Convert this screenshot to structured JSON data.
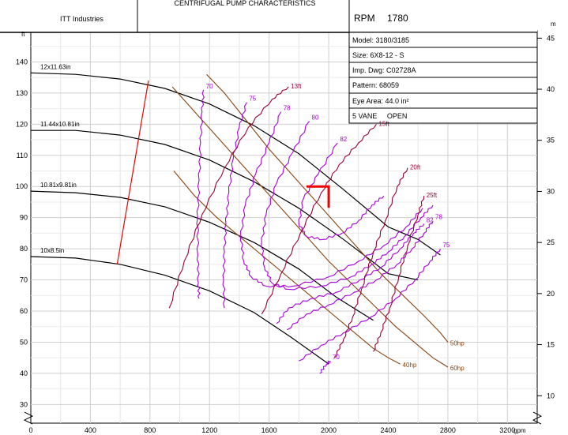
{
  "header": {
    "title": "CENTRIFUGAL PUMP CHARACTERISTICS",
    "company": "ITT Industries",
    "rpm_label": "RPM",
    "rpm_value": "1780"
  },
  "info": [
    "Model: 3180/3185",
    "Size: 6X8-12 - S",
    "Imp. Dwg: C02728A",
    "Pattern: 68059",
    "Eye Area: 44.0 in²",
    "5 VANE     OPEN"
  ],
  "chart_data": {
    "type": "line",
    "xlabel": "gpm",
    "ylabel": "ft",
    "y2label": "m",
    "xlim": [
      0,
      3400
    ],
    "ylim": [
      24,
      150
    ],
    "x_ticks": [
      0,
      400,
      800,
      1200,
      1600,
      2000,
      2400,
      2800,
      3200
    ],
    "y_ticks": [
      30,
      40,
      50,
      60,
      70,
      80,
      90,
      100,
      110,
      120,
      130,
      140
    ],
    "y2_ticks": [
      10,
      15,
      20,
      25,
      30,
      35,
      40,
      45
    ],
    "grid": true,
    "colors": {
      "head": "#000000",
      "efficiency": "#aa00dd",
      "npsh": "#990033",
      "power": "#884411",
      "limit": "#ee0000",
      "operating_point": "#ee0000"
    },
    "impeller_curves": [
      {
        "label": "12x11.63in",
        "points": [
          [
            0,
            136.5
          ],
          [
            300,
            136
          ],
          [
            600,
            134.5
          ],
          [
            900,
            131.5
          ],
          [
            1200,
            126.5
          ],
          [
            1500,
            119.5
          ],
          [
            1800,
            110.5
          ],
          [
            2100,
            99
          ],
          [
            2400,
            87
          ],
          [
            2600,
            83
          ],
          [
            2750,
            78
          ]
        ]
      },
      {
        "label": "11.44x10.81in",
        "points": [
          [
            0,
            118
          ],
          [
            300,
            118
          ],
          [
            600,
            116.5
          ],
          [
            900,
            113.5
          ],
          [
            1200,
            108.5
          ],
          [
            1500,
            101.5
          ],
          [
            1800,
            93
          ],
          [
            2100,
            83
          ],
          [
            2400,
            72
          ],
          [
            2600,
            70
          ]
        ]
      },
      {
        "label": "10.81x9.81in",
        "points": [
          [
            0,
            98.5
          ],
          [
            300,
            98
          ],
          [
            600,
            96.5
          ],
          [
            900,
            93.5
          ],
          [
            1200,
            88.5
          ],
          [
            1500,
            82
          ],
          [
            1800,
            73.5
          ],
          [
            2050,
            64.5
          ],
          [
            2300,
            57
          ]
        ]
      },
      {
        "label": "10x8.5in",
        "points": [
          [
            0,
            77.5
          ],
          [
            300,
            77
          ],
          [
            600,
            75
          ],
          [
            900,
            71.5
          ],
          [
            1200,
            66.5
          ],
          [
            1500,
            59.5
          ],
          [
            1750,
            51.5
          ],
          [
            2000,
            43
          ]
        ]
      }
    ],
    "efficiency_curves": [
      {
        "label": "70",
        "points": [
          [
            1160,
            131
          ],
          [
            1150,
            124
          ],
          [
            1140,
            114
          ],
          [
            1130,
            102
          ],
          [
            1120,
            90
          ],
          [
            1122,
            78
          ],
          [
            1125,
            69
          ],
          [
            1130,
            64
          ]
        ]
      },
      {
        "label": "75",
        "points": [
          [
            1450,
            127
          ],
          [
            1400,
            119
          ],
          [
            1360,
            109
          ],
          [
            1330,
            98
          ],
          [
            1310,
            88
          ],
          [
            1300,
            79
          ],
          [
            1295,
            70
          ],
          [
            1300,
            61
          ]
        ]
      },
      {
        "label": "78",
        "points": [
          [
            1680,
            124
          ],
          [
            1600,
            114
          ],
          [
            1510,
            104
          ],
          [
            1440,
            94
          ],
          [
            1410,
            84
          ],
          [
            1430,
            76
          ],
          [
            1480,
            71
          ],
          [
            1580,
            68
          ],
          [
            1760,
            68
          ],
          [
            2000,
            71
          ],
          [
            2200,
            76
          ],
          [
            2370,
            81
          ],
          [
            2520,
            87
          ],
          [
            2630,
            93
          ]
        ]
      },
      {
        "label": "80",
        "points": [
          [
            1870,
            121
          ],
          [
            1760,
            111
          ],
          [
            1650,
            101
          ],
          [
            1580,
            91
          ],
          [
            1550,
            82
          ],
          [
            1570,
            74
          ],
          [
            1620,
            69
          ],
          [
            1730,
            67
          ],
          [
            1950,
            68
          ],
          [
            2150,
            71
          ],
          [
            2290,
            75
          ],
          [
            2400,
            79
          ],
          [
            2510,
            84
          ],
          [
            2620,
            90
          ],
          [
            2700,
            94
          ]
        ]
      },
      {
        "label": "82",
        "points": [
          [
            2060,
            114
          ],
          [
            1930,
            104
          ],
          [
            1830,
            96
          ],
          [
            1800,
            88
          ],
          [
            1850,
            84
          ],
          [
            1960,
            83
          ],
          [
            2090,
            85
          ],
          [
            2200,
            89
          ],
          [
            2290,
            94
          ],
          [
            2370,
            97
          ]
        ]
      },
      {
        "label": "82",
        "points": [
          [
            1650,
            56
          ],
          [
            1730,
            61
          ],
          [
            1880,
            64
          ],
          [
            2050,
            66
          ],
          [
            2210,
            70
          ],
          [
            2350,
            74
          ],
          [
            2480,
            80
          ],
          [
            2570,
            85
          ],
          [
            2640,
            88
          ]
        ]
      },
      {
        "label": "78",
        "points": [
          [
            1720,
            54
          ],
          [
            1850,
            59
          ],
          [
            2000,
            62
          ],
          [
            2170,
            66
          ],
          [
            2320,
            70
          ],
          [
            2460,
            75
          ],
          [
            2560,
            80
          ],
          [
            2640,
            85
          ],
          [
            2700,
            89
          ]
        ]
      },
      {
        "label": "75",
        "points": [
          [
            1800,
            44
          ],
          [
            1950,
            49
          ],
          [
            2100,
            53
          ],
          [
            2280,
            58
          ],
          [
            2450,
            64
          ],
          [
            2580,
            70
          ],
          [
            2680,
            76
          ],
          [
            2750,
            80
          ]
        ]
      },
      {
        "label": "70",
        "points": [
          [
            1940,
            40
          ],
          [
            1985,
            43
          ],
          [
            2010,
            44
          ]
        ]
      }
    ],
    "npsh_curves": [
      {
        "label": "13ft",
        "points": [
          [
            930,
            61
          ],
          [
            1030,
            76
          ],
          [
            1150,
            91
          ],
          [
            1300,
            106
          ],
          [
            1460,
            119
          ],
          [
            1620,
            128
          ],
          [
            1730,
            132
          ]
        ]
      },
      {
        "label": "15ft",
        "points": [
          [
            1550,
            59
          ],
          [
            1680,
            72
          ],
          [
            1810,
            85
          ],
          [
            1950,
            98
          ],
          [
            2070,
            107
          ],
          [
            2200,
            114
          ],
          [
            2320,
            120
          ]
        ]
      },
      {
        "label": "20ft",
        "points": [
          [
            2040,
            45
          ],
          [
            2100,
            51
          ],
          [
            2160,
            58
          ],
          [
            2220,
            67
          ],
          [
            2300,
            79
          ],
          [
            2380,
            89
          ],
          [
            2460,
            100
          ],
          [
            2530,
            106
          ]
        ]
      },
      {
        "label": "25ft",
        "points": [
          [
            2300,
            47
          ],
          [
            2350,
            53
          ],
          [
            2410,
            61
          ],
          [
            2470,
            71
          ],
          [
            2530,
            81
          ],
          [
            2600,
            91
          ],
          [
            2640,
            97
          ]
        ]
      }
    ],
    "power_curves": [
      {
        "label": "60hp",
        "points": [
          [
            950,
            132
          ],
          [
            1100,
            124
          ],
          [
            1250,
            116
          ],
          [
            1400,
            108
          ],
          [
            1550,
            100
          ],
          [
            1700,
            92
          ],
          [
            1850,
            84
          ],
          [
            2000,
            76
          ],
          [
            2150,
            69
          ],
          [
            2300,
            62
          ],
          [
            2450,
            55
          ],
          [
            2600,
            49
          ],
          [
            2700,
            45
          ],
          [
            2800,
            42
          ]
        ]
      },
      {
        "label": "50hp",
        "points": [
          [
            1180,
            136
          ],
          [
            1300,
            130
          ],
          [
            1450,
            121
          ],
          [
            1600,
            112
          ],
          [
            1750,
            104
          ],
          [
            1900,
            96
          ],
          [
            2050,
            88
          ],
          [
            2200,
            80
          ],
          [
            2350,
            72
          ],
          [
            2500,
            65
          ],
          [
            2650,
            58
          ],
          [
            2750,
            53
          ],
          [
            2800,
            50
          ]
        ]
      },
      {
        "label": "40hp",
        "points": [
          [
            960,
            105
          ],
          [
            1100,
            97
          ],
          [
            1250,
            90
          ],
          [
            1400,
            84
          ],
          [
            1550,
            78
          ],
          [
            1700,
            72
          ],
          [
            1850,
            66
          ],
          [
            2000,
            60
          ],
          [
            2150,
            54
          ],
          [
            2300,
            48
          ],
          [
            2400,
            45
          ],
          [
            2480,
            43
          ]
        ]
      }
    ],
    "operating_point": {
      "flow": 2000,
      "head": 100
    },
    "red_limit_line": [
      [
        580,
        75
      ],
      [
        790,
        134
      ]
    ]
  }
}
